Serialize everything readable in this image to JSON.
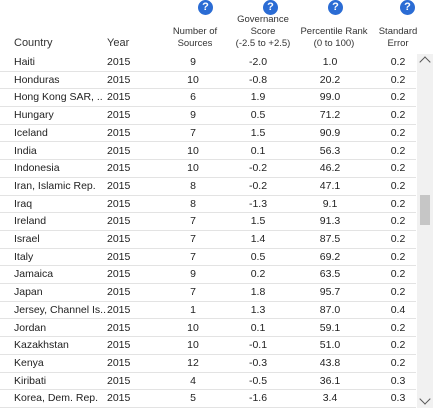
{
  "columns": {
    "country": "Country",
    "year": "Year",
    "num_sources": [
      "Number of",
      "Sources"
    ],
    "score": [
      "Governance",
      "Score",
      "(-2.5 to +2.5)"
    ],
    "rank": [
      "Percentile Rank",
      "(0 to 100)"
    ],
    "error": [
      "Standard",
      "Error"
    ]
  },
  "help_icon": "?",
  "icons": {
    "help": "help-icon",
    "scroll_up": "chevron-up-icon",
    "scroll_down": "chevron-down-icon"
  },
  "colors": {
    "help_icon": "#2b6cd4"
  },
  "rows": [
    {
      "country": "Haiti",
      "year": "2015",
      "n": "9",
      "score": "-2.0",
      "rank": "1.0",
      "err": "0.2"
    },
    {
      "country": "Honduras",
      "year": "2015",
      "n": "10",
      "score": "-0.8",
      "rank": "20.2",
      "err": "0.2"
    },
    {
      "country": "Hong Kong SAR, ..",
      "year": "2015",
      "n": "6",
      "score": "1.9",
      "rank": "99.0",
      "err": "0.2"
    },
    {
      "country": "Hungary",
      "year": "2015",
      "n": "9",
      "score": "0.5",
      "rank": "71.2",
      "err": "0.2"
    },
    {
      "country": "Iceland",
      "year": "2015",
      "n": "7",
      "score": "1.5",
      "rank": "90.9",
      "err": "0.2"
    },
    {
      "country": "India",
      "year": "2015",
      "n": "10",
      "score": "0.1",
      "rank": "56.3",
      "err": "0.2"
    },
    {
      "country": "Indonesia",
      "year": "2015",
      "n": "10",
      "score": "-0.2",
      "rank": "46.2",
      "err": "0.2"
    },
    {
      "country": "Iran, Islamic Rep.",
      "year": "2015",
      "n": "8",
      "score": "-0.2",
      "rank": "47.1",
      "err": "0.2"
    },
    {
      "country": "Iraq",
      "year": "2015",
      "n": "8",
      "score": "-1.3",
      "rank": "9.1",
      "err": "0.2"
    },
    {
      "country": "Ireland",
      "year": "2015",
      "n": "7",
      "score": "1.5",
      "rank": "91.3",
      "err": "0.2"
    },
    {
      "country": "Israel",
      "year": "2015",
      "n": "7",
      "score": "1.4",
      "rank": "87.5",
      "err": "0.2"
    },
    {
      "country": "Italy",
      "year": "2015",
      "n": "7",
      "score": "0.5",
      "rank": "69.2",
      "err": "0.2"
    },
    {
      "country": "Jamaica",
      "year": "2015",
      "n": "9",
      "score": "0.2",
      "rank": "63.5",
      "err": "0.2"
    },
    {
      "country": "Japan",
      "year": "2015",
      "n": "7",
      "score": "1.8",
      "rank": "95.7",
      "err": "0.2"
    },
    {
      "country": "Jersey, Channel Is..",
      "year": "2015",
      "n": "1",
      "score": "1.3",
      "rank": "87.0",
      "err": "0.4"
    },
    {
      "country": "Jordan",
      "year": "2015",
      "n": "10",
      "score": "0.1",
      "rank": "59.1",
      "err": "0.2"
    },
    {
      "country": "Kazakhstan",
      "year": "2015",
      "n": "10",
      "score": "-0.1",
      "rank": "51.0",
      "err": "0.2"
    },
    {
      "country": "Kenya",
      "year": "2015",
      "n": "12",
      "score": "-0.3",
      "rank": "43.8",
      "err": "0.2"
    },
    {
      "country": "Kiribati",
      "year": "2015",
      "n": "4",
      "score": "-0.5",
      "rank": "36.1",
      "err": "0.3"
    },
    {
      "country": "Korea, Dem. Rep.",
      "year": "2015",
      "n": "5",
      "score": "-1.6",
      "rank": "3.4",
      "err": "0.3"
    }
  ]
}
